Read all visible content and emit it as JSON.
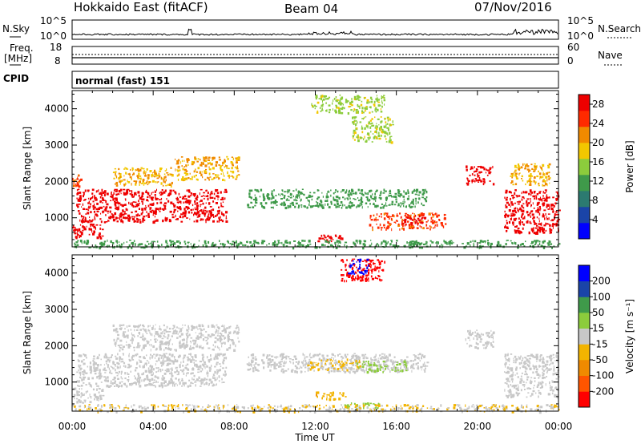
{
  "header": {
    "station": "Hokkaido East (fitACF)",
    "beam": "Beam 04",
    "date": "07/Nov/2016"
  },
  "status_panels": {
    "nsky_label": "N.Sky",
    "nsearch_label": "N.Search",
    "noise_ticks": [
      "10^5",
      "10^0"
    ],
    "freq_label_line1": "Freq.",
    "freq_label_line2": "[MHz]",
    "freq_ticks": [
      "18",
      "8"
    ],
    "nave_label": "Nave",
    "nave_ticks": [
      "60",
      "0"
    ],
    "cpid_label": "CPID",
    "cpid_value": "normal (fast) 151"
  },
  "chart_data": [
    {
      "type": "heatmap",
      "panel": "power",
      "ylabel": "Slant Range [km]",
      "xlabel": "Time UT",
      "x_ticks": [
        "00:00",
        "04:00",
        "08:00",
        "12:00",
        "16:00",
        "20:00",
        "00:00"
      ],
      "xlim_hours": [
        0,
        24
      ],
      "y_ticks": [
        1000,
        2000,
        3000,
        4000
      ],
      "ylim": [
        200,
        4500
      ],
      "colorbar": {
        "label": "Power [dB]",
        "ticks": [
          4,
          8,
          12,
          16,
          20,
          24,
          28
        ],
        "range": [
          0,
          30
        ],
        "colors": [
          "#0000ff",
          "#1a44a8",
          "#2c7a70",
          "#3f9a4a",
          "#8ccc3c",
          "#f2c700",
          "#f08a00",
          "#ff2a00",
          "#ee0000"
        ]
      },
      "regions": [
        {
          "t0": 0.2,
          "t1": 7.6,
          "r0": 900,
          "r1": 1800,
          "level": 28
        },
        {
          "t0": 0.0,
          "t1": 0.4,
          "r0": 1850,
          "r1": 2200,
          "level": 24
        },
        {
          "t0": 2.0,
          "t1": 5.0,
          "r0": 1900,
          "r1": 2400,
          "level": 20
        },
        {
          "t0": 5.0,
          "t1": 8.2,
          "r0": 2050,
          "r1": 2700,
          "level": 20
        },
        {
          "t0": 0.0,
          "t1": 1.5,
          "r0": 450,
          "r1": 850,
          "level": 28
        },
        {
          "t0": 19.4,
          "t1": 20.8,
          "r0": 1950,
          "r1": 2450,
          "level": 28
        },
        {
          "t0": 21.3,
          "t1": 24.0,
          "r0": 600,
          "r1": 1800,
          "level": 28
        },
        {
          "t0": 21.6,
          "t1": 23.6,
          "r0": 1900,
          "r1": 2500,
          "level": 20
        },
        {
          "t0": 8.6,
          "t1": 17.5,
          "r0": 1300,
          "r1": 1800,
          "level": 12
        },
        {
          "t0": 13.8,
          "t1": 15.8,
          "r0": 3100,
          "r1": 3800,
          "level": 16
        },
        {
          "t0": 14.6,
          "t1": 18.4,
          "r0": 700,
          "r1": 1150,
          "level": 24
        },
        {
          "t0": 12.0,
          "t1": 13.4,
          "r0": 350,
          "r1": 550,
          "level": 28
        },
        {
          "t0": 16.2,
          "t1": 17.4,
          "r0": 800,
          "r1": 1100,
          "level": 28
        },
        {
          "t0": 11.8,
          "t1": 15.4,
          "r0": 3900,
          "r1": 4400,
          "level": 16
        },
        {
          "t0": 0.0,
          "t1": 24.0,
          "r0": 200,
          "r1": 400,
          "level": 12
        }
      ]
    },
    {
      "type": "heatmap",
      "panel": "velocity",
      "ylabel": "Slant Range [km]",
      "xlabel": "Time UT",
      "x_ticks": [
        "00:00",
        "04:00",
        "08:00",
        "12:00",
        "16:00",
        "20:00",
        "00:00"
      ],
      "xlim_hours": [
        0,
        24
      ],
      "y_ticks": [
        1000,
        2000,
        3000,
        4000
      ],
      "ylim": [
        200,
        4500
      ],
      "colorbar": {
        "label": "Velocity [m s⁻¹]",
        "ticks": [
          "200",
          "100",
          "50",
          "15",
          "-15",
          "-50",
          "-100",
          "-200"
        ],
        "range": [
          -250,
          250
        ],
        "colors": [
          "#ff0000",
          "#ff5500",
          "#f08a00",
          "#f2b400",
          "#c8c8c8",
          "#8ccc3c",
          "#3f9a4a",
          "#1a44a8",
          "#0000ff"
        ]
      },
      "regions": [
        {
          "t0": 0.2,
          "t1": 7.6,
          "r0": 900,
          "r1": 1800,
          "level": 0
        },
        {
          "t0": 0.0,
          "t1": 1.5,
          "r0": 450,
          "r1": 850,
          "level": 0
        },
        {
          "t0": 2.0,
          "t1": 8.2,
          "r0": 1900,
          "r1": 2600,
          "level": 0
        },
        {
          "t0": 19.4,
          "t1": 20.8,
          "r0": 1950,
          "r1": 2450,
          "level": 0
        },
        {
          "t0": 21.3,
          "t1": 24.0,
          "r0": 600,
          "r1": 1800,
          "level": 0
        },
        {
          "t0": 8.6,
          "t1": 17.5,
          "r0": 1300,
          "r1": 1800,
          "level": 0
        },
        {
          "t0": 11.5,
          "t1": 14.2,
          "r0": 1350,
          "r1": 1650,
          "level": -40
        },
        {
          "t0": 14.0,
          "t1": 16.5,
          "r0": 1300,
          "r1": 1600,
          "level": 40
        },
        {
          "t0": 12.0,
          "t1": 13.6,
          "r0": 550,
          "r1": 750,
          "level": -70
        },
        {
          "t0": 13.4,
          "t1": 15.2,
          "r0": 300,
          "r1": 450,
          "level": 60
        },
        {
          "t0": 13.2,
          "t1": 15.4,
          "r0": 3800,
          "r1": 4400,
          "level": -220
        },
        {
          "t0": 13.6,
          "t1": 14.6,
          "r0": 4000,
          "r1": 4400,
          "level": 220
        },
        {
          "t0": 0.0,
          "t1": 24.0,
          "r0": 200,
          "r1": 400,
          "level": -25
        }
      ]
    }
  ]
}
